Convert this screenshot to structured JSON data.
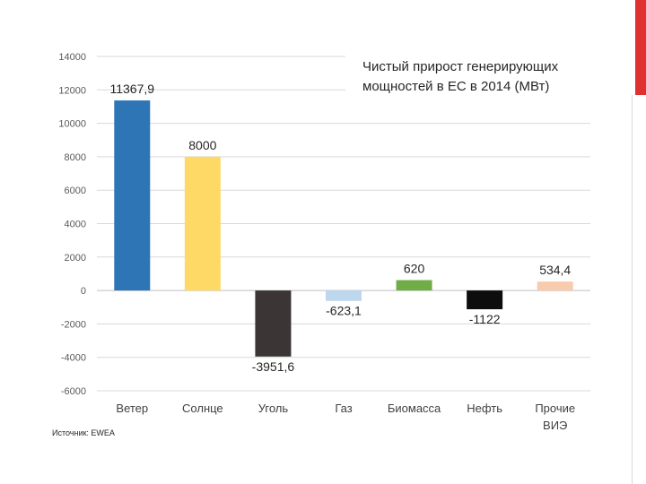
{
  "slide": {
    "accent_color": "#e0302f",
    "source_text": "Источник: EWEA"
  },
  "chart_data": {
    "type": "bar",
    "title_lines": [
      "Чистый прирост генерирующих",
      "мощностей в ЕС в 2014 (МВт)"
    ],
    "categories": [
      [
        "Ветер"
      ],
      [
        "Солнце"
      ],
      [
        "Уголь"
      ],
      [
        "Газ"
      ],
      [
        "Биомасса"
      ],
      [
        "Нефть"
      ],
      [
        "Прочие",
        "ВИЭ"
      ]
    ],
    "values": [
      11367.9,
      8000,
      -3951.6,
      -623.1,
      620,
      -1122,
      534.4
    ],
    "value_labels": [
      "11367,9",
      "8000",
      "-3951,6",
      "-623,1",
      "620",
      "-1122",
      "534,4"
    ],
    "colors": [
      "#2e75b6",
      "#ffd966",
      "#3b3535",
      "#bdd7ee",
      "#70ad47",
      "#0d0d0d",
      "#f8cbad"
    ],
    "ylim": [
      -6000,
      14000
    ],
    "yticks": [
      14000,
      12000,
      10000,
      8000,
      6000,
      4000,
      2000,
      0,
      -2000,
      -4000,
      -6000
    ],
    "ytick_labels": [
      "14000",
      "12000",
      "10000",
      "8000",
      "6000",
      "4000",
      "2000",
      "0",
      "-2000",
      "-4000",
      "-6000"
    ],
    "grid": true,
    "xlabel": "",
    "ylabel": ""
  }
}
